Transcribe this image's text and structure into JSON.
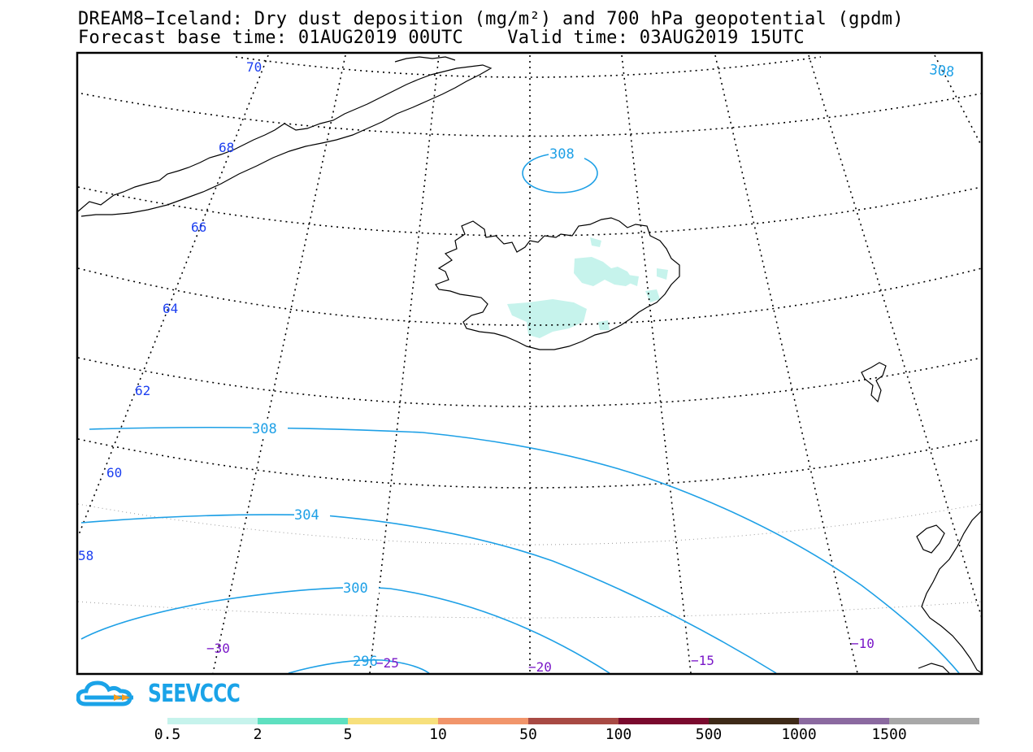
{
  "header": {
    "line1": "DREAM8−Iceland: Dry dust deposition (mg/m²) and 700 hPa geopotential (gpdm)",
    "line2": "Forecast base time: 01AUG2019 00UTC    Valid time: 03AUG2019 15UTC"
  },
  "map": {
    "latitude_labels": [
      "70",
      "68",
      "66",
      "64",
      "62",
      "60",
      "58"
    ],
    "longitude_labels": [
      "−30",
      "−25",
      "−20",
      "−15",
      "−10"
    ],
    "contour_labels": [
      "308",
      "308",
      "308",
      "304",
      "300",
      "296"
    ],
    "contour_color": "#1ea0e6",
    "lat_label_color": "#1c3ff0",
    "lon_label_color": "#7a18c8",
    "dust_color": "#c6f3ec"
  },
  "logo": {
    "text": "SEEVCCC",
    "color": "#1aa3e8"
  },
  "colorbar": {
    "colors": [
      "#c6f3ec",
      "#5ee0c0",
      "#f7e07c",
      "#f1956b",
      "#a84a44",
      "#7a0a2e",
      "#3e2a18",
      "#8b6aa0",
      "#a8a8a8"
    ],
    "labels": [
      "0.5",
      "2",
      "5",
      "10",
      "50",
      "100",
      "500",
      "1000",
      "1500"
    ]
  }
}
